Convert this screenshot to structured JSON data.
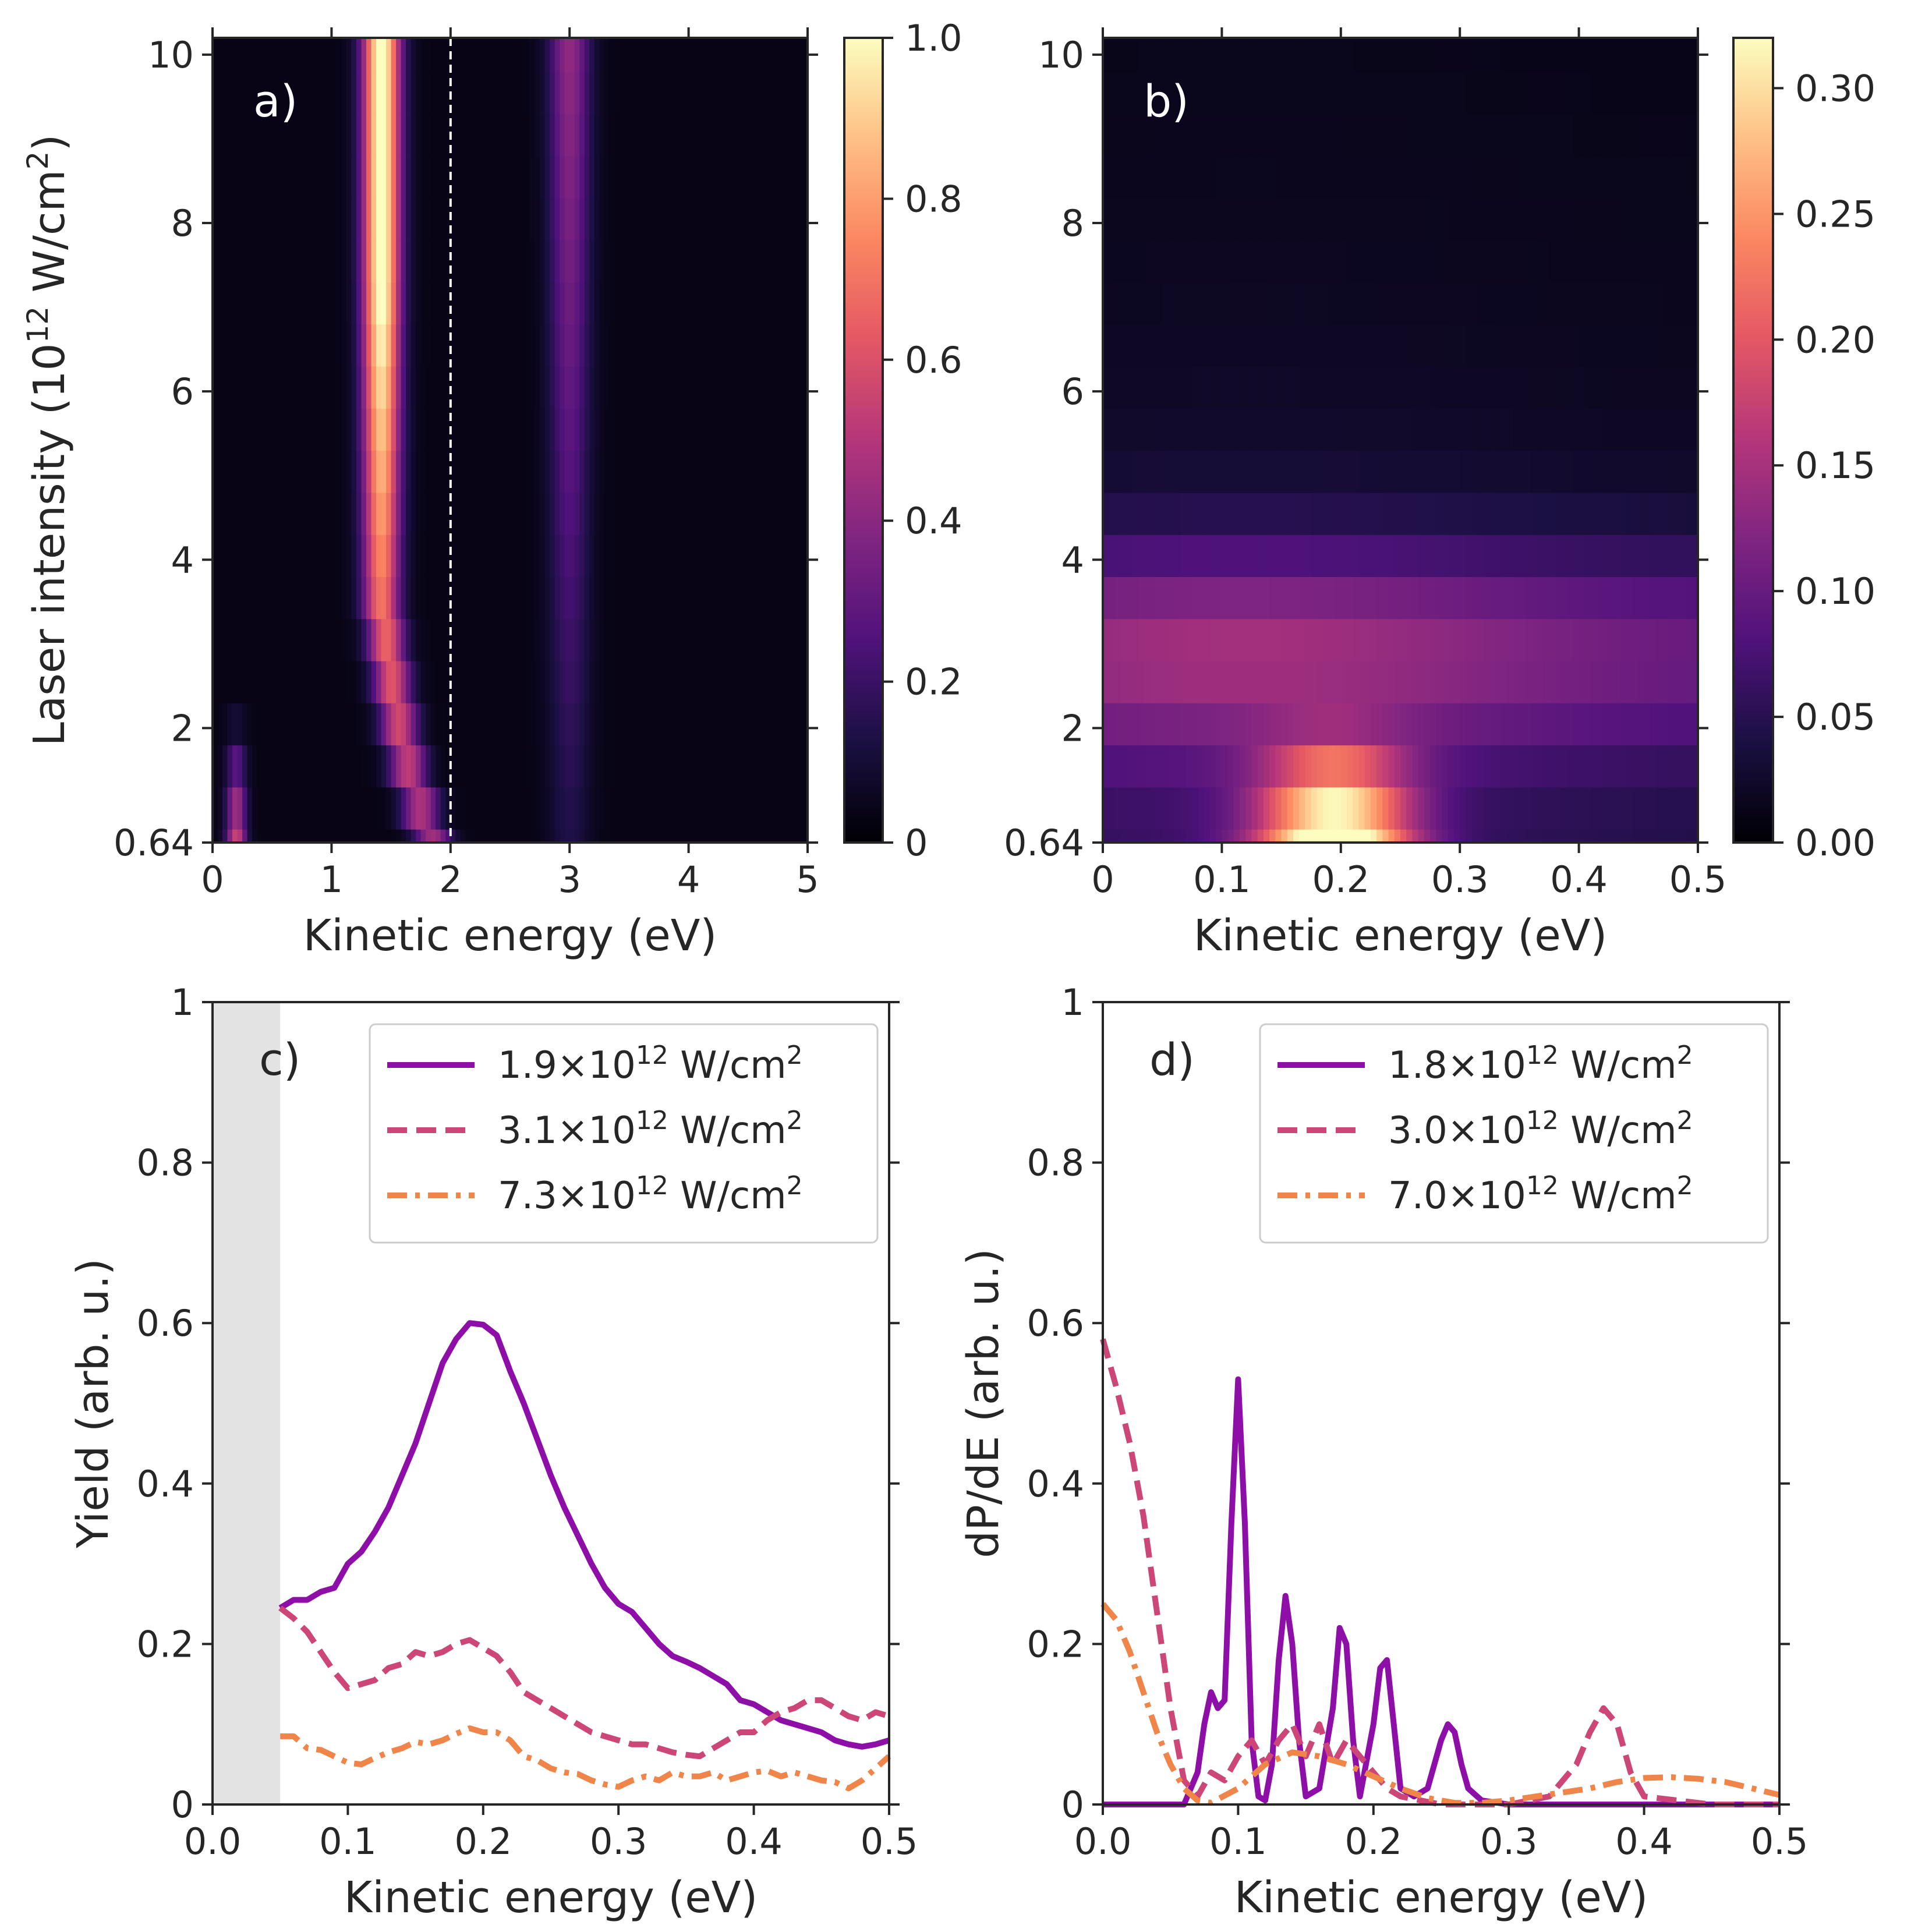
{
  "chart_data": [
    {
      "panel": "a",
      "type": "heatmap",
      "label": "a)",
      "xlabel": "Kinetic energy (eV)",
      "ylabel": "Laser intensity (10",
      "ylabel_sup": "12",
      "ylabel_tail": " W/cm",
      "ylabel_sup2": "2",
      "ylabel_end": ")",
      "xlim": [
        0,
        5
      ],
      "ylim": [
        0.64,
        10.2
      ],
      "xticks": [
        0,
        1,
        2,
        3,
        4,
        5
      ],
      "xtick_labels": [
        "0",
        "1",
        "2",
        "3",
        "4",
        "5"
      ],
      "yticks": [
        0.64,
        2,
        4,
        6,
        8,
        10
      ],
      "ytick_labels": [
        "0.64",
        "2",
        "4",
        "6",
        "8",
        "10"
      ],
      "dashed_line_x": 2.0,
      "colormap": "magma",
      "colorbar": {
        "min": 0,
        "max": 1.0,
        "ticks": [
          0,
          0.2,
          0.4,
          0.6,
          0.8,
          1.0
        ],
        "tick_labels": [
          "0",
          "0.2",
          "0.4",
          "0.6",
          "0.8",
          "1.0"
        ]
      },
      "features": [
        {
          "name": "main peak",
          "center_eV_at_low_I": 1.85,
          "center_eV_at_high_I": 1.45,
          "max": 1.0
        },
        {
          "name": "second peak",
          "center_eV": 3.0,
          "max": 0.35
        },
        {
          "name": "low energy peak",
          "center_eV": 0.2,
          "max": 0.6,
          "intensity_range": [
            0.64,
            2.0
          ]
        }
      ]
    },
    {
      "panel": "b",
      "type": "heatmap",
      "label": "b)",
      "xlabel": "Kinetic energy (eV)",
      "xlim": [
        0,
        0.5
      ],
      "ylim": [
        0.64,
        10.2
      ],
      "xticks": [
        0,
        0.1,
        0.2,
        0.3,
        0.4,
        0.5
      ],
      "xtick_labels": [
        "0",
        "0.1",
        "0.2",
        "0.3",
        "0.4",
        "0.5"
      ],
      "yticks": [
        0.64,
        2,
        4,
        6,
        8,
        10
      ],
      "ytick_labels": [
        "0.64",
        "2",
        "4",
        "6",
        "8",
        "10"
      ],
      "colormap": "magma",
      "colorbar": {
        "min": 0,
        "max": 0.32,
        "ticks": [
          0,
          0.05,
          0.1,
          0.15,
          0.2,
          0.25,
          0.3
        ],
        "tick_labels": [
          "0.00",
          "0.05",
          "0.10",
          "0.15",
          "0.20",
          "0.25",
          "0.30"
        ]
      },
      "features": [
        {
          "name": "low-intensity hot spot",
          "center_eV": 0.2,
          "intensity_range": [
            0.64,
            1.8
          ],
          "max": 0.32
        }
      ]
    },
    {
      "panel": "c",
      "type": "line",
      "label": "c)",
      "xlabel": "Kinetic energy (eV)",
      "ylabel": "Yield (arb. u.)",
      "xlim": [
        0,
        0.5
      ],
      "ylim": [
        0,
        1
      ],
      "xticks": [
        0,
        0.1,
        0.2,
        0.3,
        0.4,
        0.5
      ],
      "xtick_labels": [
        "0.0",
        "0.1",
        "0.2",
        "0.3",
        "0.4",
        "0.5"
      ],
      "yticks": [
        0,
        0.2,
        0.4,
        0.6,
        0.8,
        1
      ],
      "ytick_labels": [
        "0",
        "0.2",
        "0.4",
        "0.6",
        "0.8",
        "1"
      ],
      "shaded_region": [
        0,
        0.05
      ],
      "legend": "top-right",
      "series": [
        {
          "name": "1.9×10",
          "sup": "12",
          "tail": " W/cm",
          "sup2": "2",
          "color": "#8e0ea8",
          "style": "solid",
          "x": [
            0.05,
            0.06,
            0.07,
            0.08,
            0.09,
            0.1,
            0.11,
            0.12,
            0.13,
            0.14,
            0.15,
            0.16,
            0.17,
            0.18,
            0.19,
            0.2,
            0.21,
            0.22,
            0.23,
            0.24,
            0.25,
            0.26,
            0.27,
            0.28,
            0.29,
            0.3,
            0.31,
            0.32,
            0.33,
            0.34,
            0.35,
            0.36,
            0.37,
            0.38,
            0.39,
            0.4,
            0.41,
            0.42,
            0.43,
            0.44,
            0.45,
            0.46,
            0.47,
            0.48,
            0.49,
            0.5
          ],
          "y": [
            0.245,
            0.255,
            0.255,
            0.265,
            0.27,
            0.3,
            0.315,
            0.34,
            0.37,
            0.41,
            0.45,
            0.5,
            0.55,
            0.58,
            0.6,
            0.598,
            0.585,
            0.54,
            0.5,
            0.455,
            0.41,
            0.37,
            0.335,
            0.3,
            0.27,
            0.25,
            0.24,
            0.22,
            0.2,
            0.185,
            0.178,
            0.17,
            0.16,
            0.15,
            0.13,
            0.125,
            0.115,
            0.105,
            0.1,
            0.095,
            0.09,
            0.08,
            0.075,
            0.072,
            0.075,
            0.08
          ]
        },
        {
          "name": "3.1×10",
          "sup": "12",
          "tail": " W/cm",
          "sup2": "2",
          "color": "#cc4778",
          "style": "dashed",
          "x": [
            0.05,
            0.06,
            0.07,
            0.08,
            0.09,
            0.1,
            0.11,
            0.12,
            0.13,
            0.14,
            0.15,
            0.16,
            0.17,
            0.18,
            0.19,
            0.2,
            0.21,
            0.22,
            0.23,
            0.24,
            0.25,
            0.26,
            0.27,
            0.28,
            0.29,
            0.3,
            0.31,
            0.32,
            0.33,
            0.34,
            0.35,
            0.36,
            0.37,
            0.38,
            0.39,
            0.4,
            0.41,
            0.42,
            0.43,
            0.44,
            0.45,
            0.46,
            0.47,
            0.48,
            0.49,
            0.5
          ],
          "y": [
            0.245,
            0.232,
            0.215,
            0.19,
            0.165,
            0.145,
            0.15,
            0.155,
            0.17,
            0.175,
            0.19,
            0.185,
            0.19,
            0.2,
            0.205,
            0.195,
            0.185,
            0.165,
            0.14,
            0.13,
            0.12,
            0.11,
            0.1,
            0.09,
            0.085,
            0.08,
            0.075,
            0.075,
            0.07,
            0.065,
            0.062,
            0.06,
            0.07,
            0.08,
            0.09,
            0.09,
            0.105,
            0.115,
            0.12,
            0.13,
            0.13,
            0.12,
            0.11,
            0.105,
            0.115,
            0.11
          ]
        },
        {
          "name": "7.3×10",
          "sup": "12",
          "tail": " W/cm",
          "sup2": "2",
          "color": "#f0854a",
          "style": "dashdot",
          "x": [
            0.05,
            0.06,
            0.07,
            0.08,
            0.09,
            0.1,
            0.11,
            0.12,
            0.13,
            0.14,
            0.15,
            0.16,
            0.17,
            0.18,
            0.19,
            0.2,
            0.21,
            0.22,
            0.23,
            0.24,
            0.25,
            0.26,
            0.27,
            0.28,
            0.29,
            0.3,
            0.31,
            0.32,
            0.33,
            0.34,
            0.35,
            0.36,
            0.37,
            0.38,
            0.39,
            0.4,
            0.41,
            0.42,
            0.43,
            0.44,
            0.45,
            0.46,
            0.47,
            0.48,
            0.49,
            0.5
          ],
          "y": [
            0.085,
            0.085,
            0.07,
            0.068,
            0.06,
            0.052,
            0.05,
            0.058,
            0.065,
            0.07,
            0.078,
            0.075,
            0.08,
            0.088,
            0.095,
            0.09,
            0.09,
            0.08,
            0.06,
            0.055,
            0.045,
            0.04,
            0.038,
            0.03,
            0.025,
            0.022,
            0.03,
            0.035,
            0.03,
            0.04,
            0.035,
            0.035,
            0.04,
            0.03,
            0.035,
            0.04,
            0.042,
            0.035,
            0.04,
            0.035,
            0.03,
            0.028,
            0.02,
            0.03,
            0.045,
            0.06
          ]
        }
      ]
    },
    {
      "panel": "d",
      "type": "line",
      "label": "d)",
      "xlabel": "Kinetic energy (eV)",
      "ylabel": "dP/dE (arb. u.)",
      "xlim": [
        0,
        0.5
      ],
      "ylim": [
        0,
        1
      ],
      "xticks": [
        0,
        0.1,
        0.2,
        0.3,
        0.4,
        0.5
      ],
      "xtick_labels": [
        "0.0",
        "0.1",
        "0.2",
        "0.3",
        "0.4",
        "0.5"
      ],
      "yticks": [
        0,
        0.2,
        0.4,
        0.6,
        0.8,
        1
      ],
      "ytick_labels": [
        "0",
        "0.2",
        "0.4",
        "0.6",
        "0.8",
        "1"
      ],
      "legend": "top-right",
      "series": [
        {
          "name": "1.8×10",
          "sup": "12",
          "tail": " W/cm",
          "sup2": "2",
          "color": "#8e0ea8",
          "style": "solid",
          "x": [
            0,
            0.06,
            0.07,
            0.075,
            0.08,
            0.085,
            0.09,
            0.095,
            0.1,
            0.105,
            0.11,
            0.115,
            0.12,
            0.125,
            0.13,
            0.135,
            0.14,
            0.145,
            0.15,
            0.16,
            0.17,
            0.175,
            0.18,
            0.185,
            0.19,
            0.2,
            0.205,
            0.21,
            0.215,
            0.22,
            0.23,
            0.24,
            0.25,
            0.255,
            0.26,
            0.265,
            0.27,
            0.28,
            0.3,
            0.4,
            0.5
          ],
          "y": [
            0,
            0.0,
            0.04,
            0.1,
            0.14,
            0.12,
            0.13,
            0.35,
            0.53,
            0.35,
            0.08,
            0.01,
            0.005,
            0.05,
            0.18,
            0.26,
            0.2,
            0.08,
            0.01,
            0.02,
            0.12,
            0.22,
            0.2,
            0.08,
            0.01,
            0.1,
            0.17,
            0.18,
            0.1,
            0.02,
            0.01,
            0.02,
            0.08,
            0.1,
            0.09,
            0.05,
            0.02,
            0.005,
            0.0,
            0.0,
            0.0
          ]
        },
        {
          "name": "3.0×10",
          "sup": "12",
          "tail": " W/cm",
          "sup2": "2",
          "color": "#cc4778",
          "style": "dashed",
          "x": [
            0,
            0.01,
            0.02,
            0.03,
            0.04,
            0.05,
            0.06,
            0.07,
            0.08,
            0.09,
            0.1,
            0.11,
            0.12,
            0.13,
            0.14,
            0.15,
            0.16,
            0.17,
            0.18,
            0.19,
            0.2,
            0.21,
            0.22,
            0.25,
            0.3,
            0.33,
            0.35,
            0.36,
            0.37,
            0.38,
            0.39,
            0.4,
            0.45,
            0.5
          ],
          "y": [
            0.58,
            0.52,
            0.45,
            0.36,
            0.24,
            0.12,
            0.03,
            0.01,
            0.04,
            0.03,
            0.06,
            0.08,
            0.05,
            0.08,
            0.1,
            0.06,
            0.1,
            0.05,
            0.08,
            0.06,
            0.04,
            0.02,
            0.01,
            0.0,
            0.0,
            0.01,
            0.05,
            0.09,
            0.12,
            0.1,
            0.04,
            0.01,
            0.0,
            0.0
          ]
        },
        {
          "name": "7.0×10",
          "sup": "12",
          "tail": " W/cm",
          "sup2": "2",
          "color": "#f0854a",
          "style": "dashdot",
          "x": [
            0,
            0.01,
            0.02,
            0.03,
            0.04,
            0.05,
            0.06,
            0.07,
            0.08,
            0.1,
            0.12,
            0.14,
            0.16,
            0.18,
            0.2,
            0.22,
            0.24,
            0.26,
            0.28,
            0.3,
            0.32,
            0.34,
            0.36,
            0.38,
            0.4,
            0.42,
            0.44,
            0.46,
            0.48,
            0.5
          ],
          "y": [
            0.25,
            0.23,
            0.19,
            0.14,
            0.09,
            0.05,
            0.02,
            0.005,
            0.002,
            0.02,
            0.05,
            0.065,
            0.06,
            0.05,
            0.035,
            0.02,
            0.008,
            0.002,
            0.002,
            0.005,
            0.01,
            0.015,
            0.02,
            0.028,
            0.033,
            0.034,
            0.032,
            0.028,
            0.02,
            0.012
          ]
        }
      ]
    }
  ]
}
